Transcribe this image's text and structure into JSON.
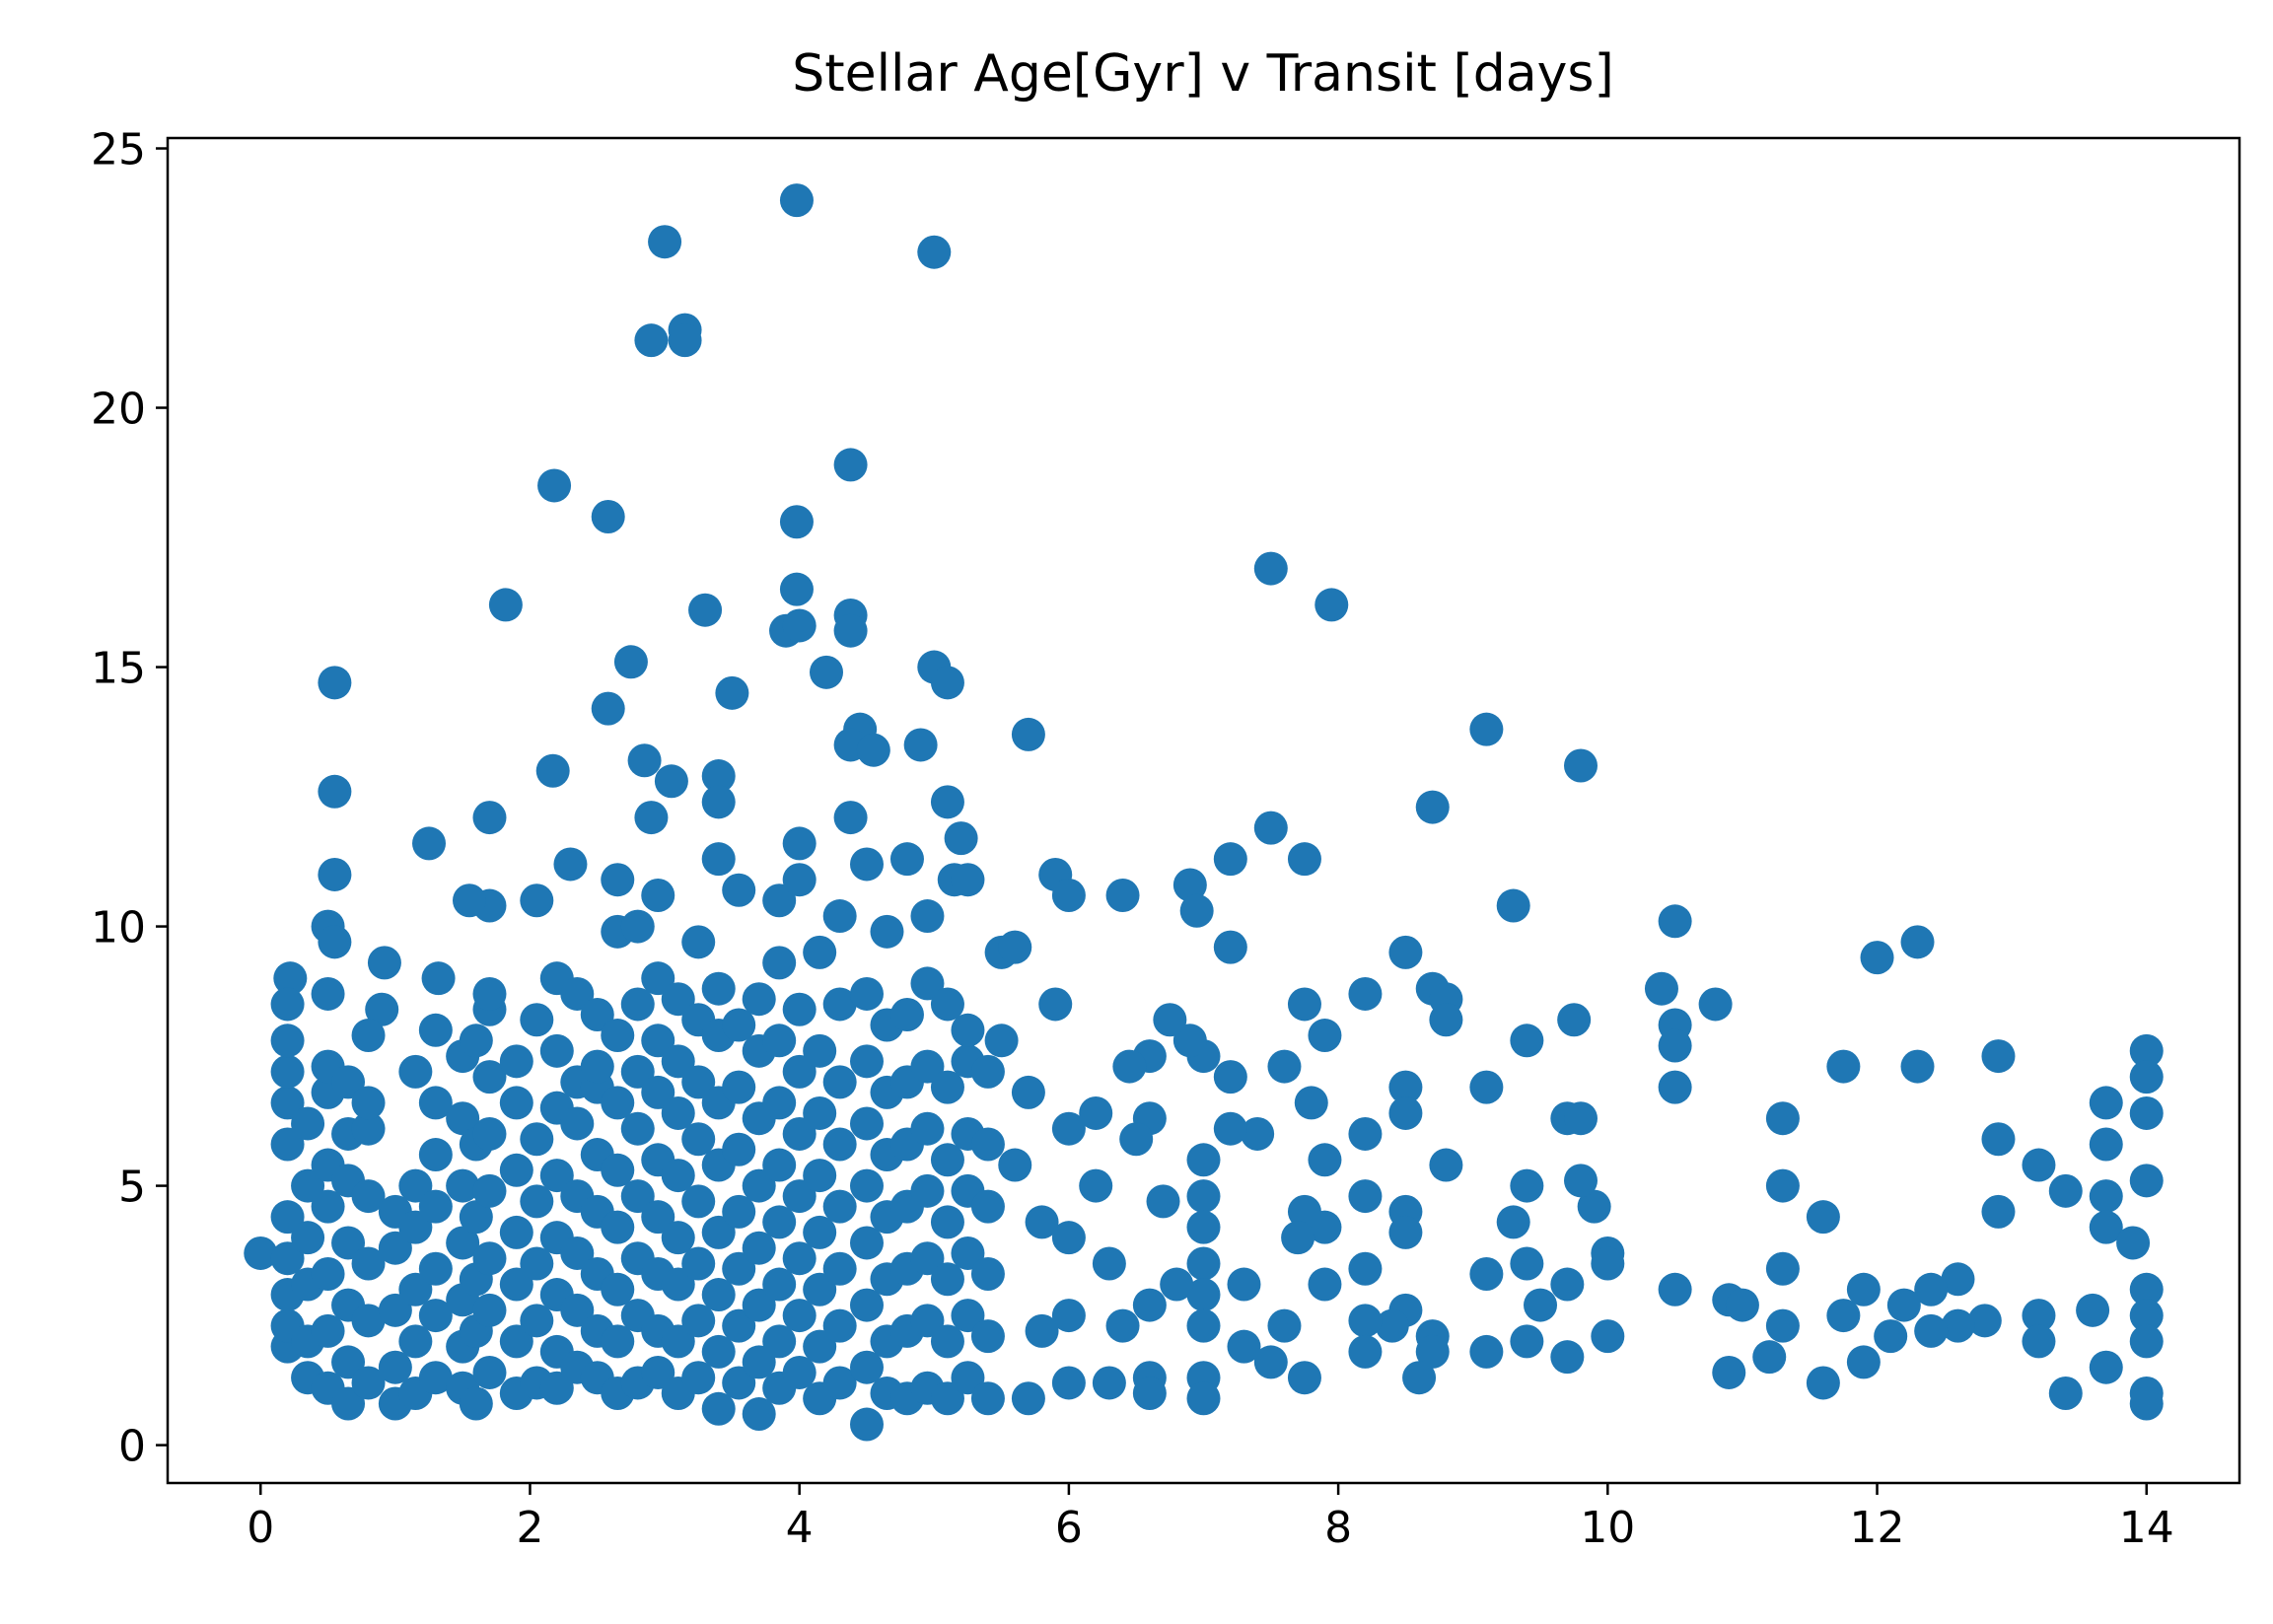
{
  "chart_data": {
    "type": "scatter",
    "title": "Stellar Age[Gyr] v Transit [days]",
    "color": "#1f77b4",
    "xlim": [
      -0.69,
      14.69
    ],
    "ylim": [
      -0.73,
      25.2
    ],
    "xticks": [
      0,
      2,
      4,
      6,
      8,
      10,
      12,
      14
    ],
    "yticks": [
      0,
      5,
      10,
      15,
      20,
      25
    ],
    "x": [
      0,
      0.55,
      0.55,
      0.55,
      0.5,
      0.55,
      0.22,
      0.92,
      0.9,
      1.25,
      1.32,
      1.7,
      1.82,
      2.18,
      2.17,
      2.05,
      1.7,
      1.55,
      2.58,
      2.58,
      2.75,
      2.9,
      3,
      3.15,
      3.15,
      3.3,
      3.5,
      2.85,
      3.05,
      2.9,
      3.4,
      3.4,
      2.3,
      2.65,
      3.98,
      3.98,
      4.38,
      3.98,
      3.9,
      4,
      4.38,
      4.38,
      4.2,
      4.45,
      4.38,
      4.55,
      4.9,
      4.38,
      4,
      5,
      5,
      5.1,
      5.1,
      5.2,
      5.15,
      5.25,
      5.7,
      5.9,
      6,
      6.4,
      5.5,
      5.6,
      5.9,
      7.5,
      7.95,
      7.5,
      7.2,
      7.75,
      6.9,
      6.95,
      7.2,
      7.75,
      8.2,
      8.5,
      8.7,
      8.7,
      8.8,
      8.8,
      9.1,
      9.3,
      9.8,
      9.75,
      9.4,
      9.1,
      9.7,
      9.8,
      10.5,
      10.4,
      10.5,
      10.5,
      10.5,
      10.8,
      12,
      12.3,
      11.75,
      12.3,
      12.9,
      11.3,
      12.9,
      13.2,
      12.9,
      11.3,
      11.6,
      13.4,
      14,
      14,
      14,
      13.7,
      13.7,
      14,
      13.7,
      13.7,
      13.9,
      14,
      14,
      14,
      14,
      14,
      13.7,
      13.4,
      13.6,
      13.2,
      13.2,
      12.8,
      12.6,
      12.4,
      12.2,
      12.6,
      12.4,
      12.1,
      11.9,
      11.75,
      11.9,
      11.6,
      11.3,
      11.3,
      11.2,
      10.9,
      11,
      10.9,
      10.5,
      10,
      10,
      10,
      9.9,
      9.8,
      9.7,
      9.7,
      9.4,
      9.3,
      9.4,
      9.5,
      9.4,
      9.1,
      9.1,
      8.8,
      8.5,
      8.5,
      8.5,
      8.5,
      8.5,
      8.4,
      8.7,
      8.7,
      8.6,
      8.2,
      8.2,
      8.2,
      8.2,
      8.2,
      7.9,
      7.9,
      7.9,
      7.9,
      7.8,
      7.75,
      7.7,
      7.6,
      7.6,
      7.4,
      7.3,
      7.3,
      7.75,
      7.5,
      7,
      7,
      7,
      7,
      7,
      7,
      7,
      7,
      7,
      7.2,
      7.2,
      6.9,
      6.75,
      6.6,
      6.45,
      6.6,
      6.5,
      6.7,
      6.8,
      6.6,
      6.6,
      6.6,
      6.3,
      6.4,
      6.3,
      6.2,
      6.2,
      6,
      6,
      6,
      6,
      5.7,
      5.5,
      5.7,
      5.8,
      5.8,
      5.6,
      0.2,
      0.2,
      0.2,
      0.2,
      0.2,
      0.2,
      0.2,
      0.2,
      0.2,
      0.2,
      0.35,
      0.35,
      0.35,
      0.35,
      0.35,
      0.35,
      0.5,
      0.5,
      0.5,
      0.5,
      0.5,
      0.5,
      0.5,
      0.5,
      0.65,
      0.65,
      0.65,
      0.65,
      0.65,
      0.65,
      0.65,
      0.8,
      0.8,
      0.8,
      0.8,
      0.8,
      0.8,
      0.8,
      1,
      1,
      1,
      1,
      1,
      1.15,
      1.15,
      1.15,
      1.15,
      1.15,
      1.15,
      1.3,
      1.3,
      1.3,
      1.3,
      1.3,
      1.3,
      1.3,
      1.5,
      1.5,
      1.5,
      1.5,
      1.5,
      1.5,
      1.5,
      1.6,
      1.6,
      1.6,
      1.6,
      1.6,
      1.6,
      1.7,
      1.7,
      1.7,
      1.7,
      1.7,
      1.7,
      1.7,
      1.7,
      1.9,
      1.9,
      1.9,
      1.9,
      1.9,
      1.9,
      1.9,
      2.05,
      2.05,
      2.05,
      2.05,
      2.05,
      2.05,
      2.2,
      2.2,
      2.2,
      2.2,
      2.2,
      2.2,
      2.2,
      2.2,
      2.35,
      2.35,
      2.35,
      2.35,
      2.35,
      2.35,
      2.35,
      2.5,
      2.5,
      2.5,
      2.5,
      2.5,
      2.5,
      2.5,
      2.5,
      2.65,
      2.65,
      2.65,
      2.65,
      2.65,
      2.65,
      2.65,
      2.65,
      2.8,
      2.8,
      2.8,
      2.8,
      2.8,
      2.8,
      2.8,
      2.8,
      2.95,
      2.95,
      2.95,
      2.95,
      2.95,
      2.95,
      2.95,
      2.95,
      2.95,
      3.1,
      3.1,
      3.1,
      3.1,
      3.1,
      3.1,
      3.1,
      3.1,
      3.25,
      3.25,
      3.25,
      3.25,
      3.25,
      3.25,
      3.25,
      3.25,
      3.4,
      3.4,
      3.4,
      3.4,
      3.4,
      3.4,
      3.4,
      3.4,
      3.4,
      3.55,
      3.55,
      3.55,
      3.55,
      3.55,
      3.55,
      3.55,
      3.55,
      3.7,
      3.7,
      3.7,
      3.7,
      3.7,
      3.7,
      3.7,
      3.7,
      3.85,
      3.85,
      3.85,
      3.85,
      3.85,
      3.85,
      3.85,
      3.85,
      3.85,
      4,
      4,
      4,
      4,
      4,
      4,
      4,
      4,
      4.15,
      4.15,
      4.15,
      4.15,
      4.15,
      4.15,
      4.15,
      4.15,
      4.3,
      4.3,
      4.3,
      4.3,
      4.3,
      4.3,
      4.3,
      4.3,
      4.5,
      4.5,
      4.5,
      4.5,
      4.5,
      4.5,
      4.5,
      4.5,
      4.5,
      4.65,
      4.65,
      4.65,
      4.65,
      4.65,
      4.65,
      4.65,
      4.65,
      4.8,
      4.8,
      4.8,
      4.8,
      4.8,
      4.8,
      4.8,
      4.8,
      4.95,
      4.95,
      4.95,
      4.95,
      4.95,
      4.95,
      4.95,
      4.95,
      5.1,
      5.1,
      5.1,
      5.1,
      5.1,
      5.1,
      5.1,
      5.25,
      5.25,
      5.25,
      5.25,
      5.25,
      5.25,
      5.25,
      5.4,
      5.4,
      5.4,
      5.4,
      5.4,
      5.4
    ],
    "values": [
      3.7,
      14.7,
      12.6,
      11,
      10,
      9.7,
      9,
      9.3,
      8.4,
      11.6,
      9,
      12.1,
      16.2,
      18.5,
      13,
      10.5,
      10.4,
      10.5,
      17.9,
      14.2,
      15.1,
      21.3,
      23.2,
      21.5,
      21.3,
      16.1,
      14.5,
      13.2,
      12.8,
      12.1,
      12.9,
      12.4,
      11.2,
      10.9,
      24,
      17.8,
      18.9,
      16.5,
      15.7,
      15.8,
      16,
      15.7,
      14.9,
      13.8,
      13.5,
      13.4,
      13.5,
      12.1,
      11.6,
      23,
      15,
      14.7,
      12.4,
      11.7,
      10.9,
      10.9,
      13.7,
      11,
      10.6,
      10.6,
      9.5,
      9.6,
      8.5,
      16.9,
      16.2,
      11.9,
      11.3,
      11.3,
      10.8,
      10.3,
      9.6,
      8.5,
      8.7,
      9.5,
      12.3,
      8.8,
      8.6,
      8.2,
      13.8,
      10.4,
      13.1,
      8.2,
      7.8,
      6.9,
      6.3,
      6.3,
      10.1,
      8.8,
      8.1,
      7.7,
      6.9,
      8.5,
      9.4,
      9.7,
      7.3,
      7.3,
      7.5,
      6.3,
      5.9,
      5.4,
      4.5,
      5,
      4.4,
      4.9,
      7.6,
      7.1,
      6.4,
      6.6,
      5.8,
      5.1,
      4.8,
      4.2,
      3.9,
      3,
      2.5,
      2,
      1,
      0.8,
      1.5,
      1,
      2.6,
      2.5,
      2,
      2.4,
      3.2,
      3,
      2.7,
      2.3,
      2.2,
      2.1,
      3,
      2.5,
      1.6,
      1.2,
      3.4,
      2.3,
      1.7,
      2.8,
      2.7,
      1.4,
      3,
      3.7,
      3.5,
      2.1,
      4.6,
      5.1,
      3.1,
      1.7,
      5,
      4.3,
      3.5,
      2.7,
      2,
      3.3,
      1.8,
      5.4,
      6.9,
      6.4,
      4.5,
      4.1,
      2.6,
      2.3,
      2.1,
      1.8,
      1.3,
      6,
      4.8,
      3.4,
      2.4,
      1.8,
      7.9,
      5.5,
      4.2,
      3.1,
      6.6,
      4.5,
      4,
      7.3,
      2.3,
      6,
      3.1,
      1.9,
      1.3,
      1.6,
      7.5,
      5.5,
      4.8,
      4.2,
      3.5,
      2.9,
      2.3,
      1.3,
      0.9,
      7.1,
      6.1,
      7.8,
      8.2,
      7.5,
      7.3,
      6.3,
      5.9,
      4.7,
      3.1,
      2.7,
      1.3,
      1,
      1.2,
      2.3,
      3.5,
      5,
      6.4,
      6.1,
      4,
      2.5,
      1.2,
      6.8,
      7.8,
      0.9,
      2.2,
      4.3,
      5.4,
      1.9,
      2.3,
      2.9,
      3.6,
      4.4,
      5.8,
      6.6,
      7.2,
      7.8,
      8.5,
      1.3,
      2,
      3.1,
      4,
      5,
      6.2,
      1.1,
      2.2,
      3.3,
      4.6,
      5.4,
      6.8,
      7.3,
      8.7,
      0.8,
      1.6,
      2.7,
      3.9,
      5.1,
      6,
      7,
      1.2,
      2.4,
      3.5,
      4.8,
      6.1,
      6.6,
      7.9,
      0.8,
      1.5,
      2.6,
      3.8,
      4.5,
      1,
      2,
      3,
      4.2,
      5,
      7.2,
      1.3,
      2.5,
      3.4,
      4.6,
      5.6,
      6.6,
      8,
      1.1,
      1.9,
      2.8,
      3.9,
      5,
      6.3,
      7.5,
      0.8,
      2.2,
      3.2,
      4.4,
      5.8,
      7.8,
      1.4,
      2.6,
      3.6,
      4.9,
      6,
      7.1,
      8.4,
      8.7,
      1,
      2,
      3.1,
      4.1,
      5.3,
      6.6,
      7.4,
      1.2,
      2.4,
      3.5,
      4.7,
      5.9,
      8.2,
      1.1,
      1.8,
      2.9,
      4,
      5.2,
      6.5,
      7.6,
      9,
      1.5,
      2.6,
      3.7,
      4.8,
      6.2,
      7,
      8.7,
      1.3,
      2.2,
      3.3,
      4.5,
      5.6,
      6.9,
      7.3,
      8.3,
      1,
      2,
      3,
      4.2,
      5.3,
      6.6,
      7.9,
      9.9,
      1.2,
      2.5,
      3.6,
      4.8,
      6.1,
      7.2,
      8.5,
      10,
      1.4,
      2.2,
      3.3,
      4.4,
      5.5,
      6.8,
      7.8,
      9,
      10.6,
      1,
      2,
      3.1,
      4,
      5.2,
      6.4,
      7.4,
      8.6,
      1.3,
      2.4,
      3.5,
      4.7,
      5.9,
      7,
      8.2,
      9.7,
      0.7,
      1.8,
      2.9,
      4.1,
      5.4,
      6.6,
      7.9,
      8.8,
      11.3,
      1.2,
      2.3,
      3.4,
      4.5,
      5.7,
      6.9,
      8.1,
      10.7,
      0.6,
      1.6,
      2.7,
      3.8,
      5,
      6.3,
      7.6,
      8.6,
      1.1,
      2,
      3.1,
      4.3,
      5.4,
      6.6,
      7.8,
      9.3,
      10.5,
      1.4,
      2.5,
      3.6,
      4.8,
      6,
      7.2,
      8.4,
      10.9,
      0.9,
      1.9,
      3,
      4.1,
      5.2,
      6.4,
      7.6,
      9.5,
      1.2,
      2.3,
      3.4,
      4.6,
      5.8,
      7,
      8.5,
      10.2,
      0.4,
      1.5,
      2.7,
      3.9,
      5,
      6.2,
      7.4,
      8.7,
      11.2,
      1,
      2,
      3.2,
      4.4,
      5.6,
      6.8,
      8.1,
      9.9,
      0.9,
      2.2,
      3.4,
      4.6,
      5.8,
      7,
      8.3,
      11.3,
      1.1,
      2.4,
      3.6,
      4.9,
      6.1,
      7.3,
      8.9,
      10.2,
      0.9,
      2,
      3.2,
      4.3,
      5.5,
      6.9,
      8.5,
      1.3,
      2.5,
      3.7,
      4.9,
      6,
      7.4,
      8,
      0.9,
      2.1,
      3.3,
      4.6,
      5.8,
      7.2
    ]
  }
}
